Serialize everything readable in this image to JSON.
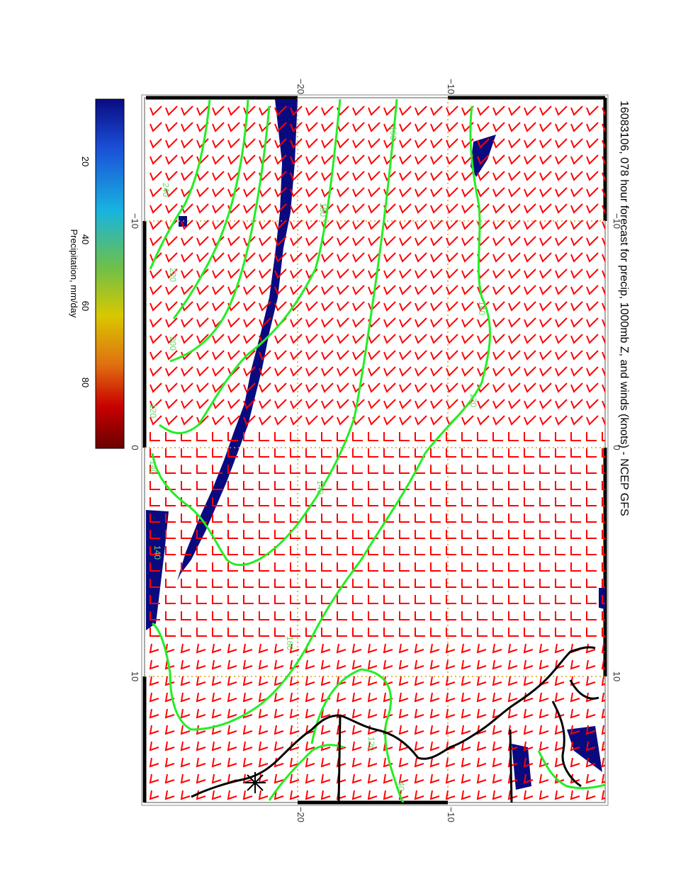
{
  "title": "16083106, 078 hour forecast for precip, 1000mb Z, and winds (knots) - NCEP GFS",
  "colorbar": {
    "label": "Precipitation, mm/day",
    "ticks": [
      "20",
      "40",
      "60",
      "80"
    ],
    "colors": [
      "#0a0a80",
      "#1a4fd8",
      "#18b4e0",
      "#6cc04a",
      "#d8c800",
      "#e07010",
      "#c80000",
      "#6a0000"
    ]
  },
  "axes": {
    "longitude_ticks": [
      "−10",
      "0",
      "10"
    ],
    "latitude_ticks": [
      "−20",
      "−10"
    ]
  },
  "contours": {
    "labels": [
      "240",
      "220",
      "200",
      "180",
      "160",
      "140",
      "120",
      "140",
      "160",
      "120",
      "140",
      "140",
      "120",
      "40"
    ]
  },
  "colors": {
    "wind_barbs": "#ff0000",
    "contours": "#22ee22",
    "grid": "#d9a020",
    "precip": "#0a0a80",
    "coast": "#000000"
  }
}
